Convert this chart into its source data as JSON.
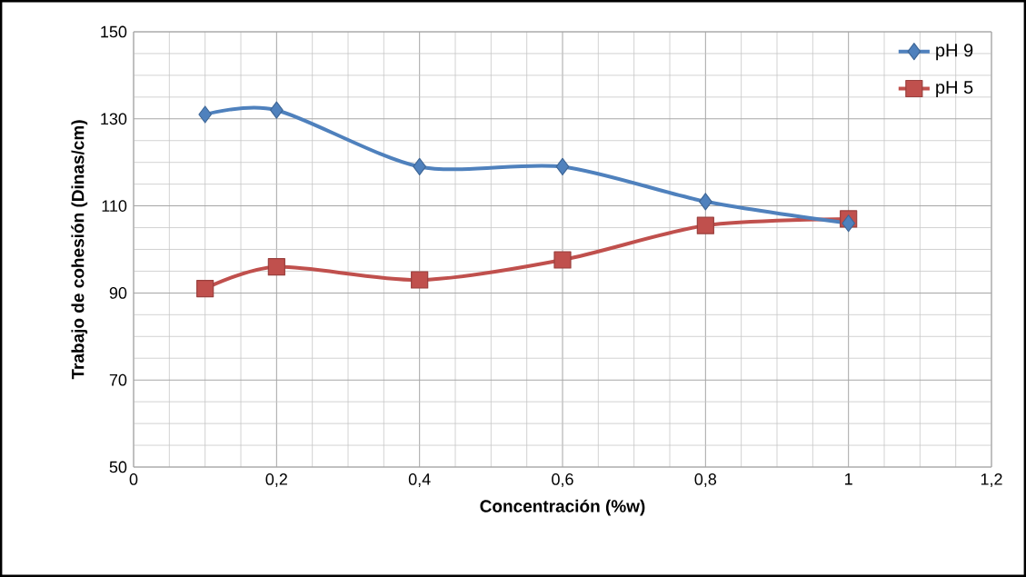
{
  "chart_data": {
    "type": "line",
    "xlabel": "Concentración (%w)",
    "ylabel": "Trabajo de cohesión (Dinas/cm)",
    "x": [
      0.1,
      0.2,
      0.4,
      0.6,
      0.8,
      1
    ],
    "series": [
      {
        "name": "pH 9",
        "color": "#4f81bd",
        "marker": "diamond",
        "values": [
          131,
          132,
          119,
          119,
          111,
          106
        ]
      },
      {
        "name": "pH 5",
        "color": "#c0504d",
        "marker": "square",
        "values": [
          91,
          96,
          93,
          97.6,
          105.5,
          107
        ]
      }
    ],
    "xlim": [
      0,
      1.2
    ],
    "ylim": [
      50,
      150
    ],
    "xticks": [
      0,
      {
        "value": 0.2,
        "label": "0,2"
      },
      {
        "value": 0.4,
        "label": "0,4"
      },
      {
        "value": 0.6,
        "label": "0,6"
      },
      {
        "value": 0.8,
        "label": "0,8"
      },
      1,
      {
        "value": 1.2,
        "label": "1,2"
      }
    ],
    "yticks": [
      50,
      70,
      90,
      110,
      130,
      150
    ],
    "grid": true,
    "legend": "top right",
    "line_style": "solid"
  }
}
